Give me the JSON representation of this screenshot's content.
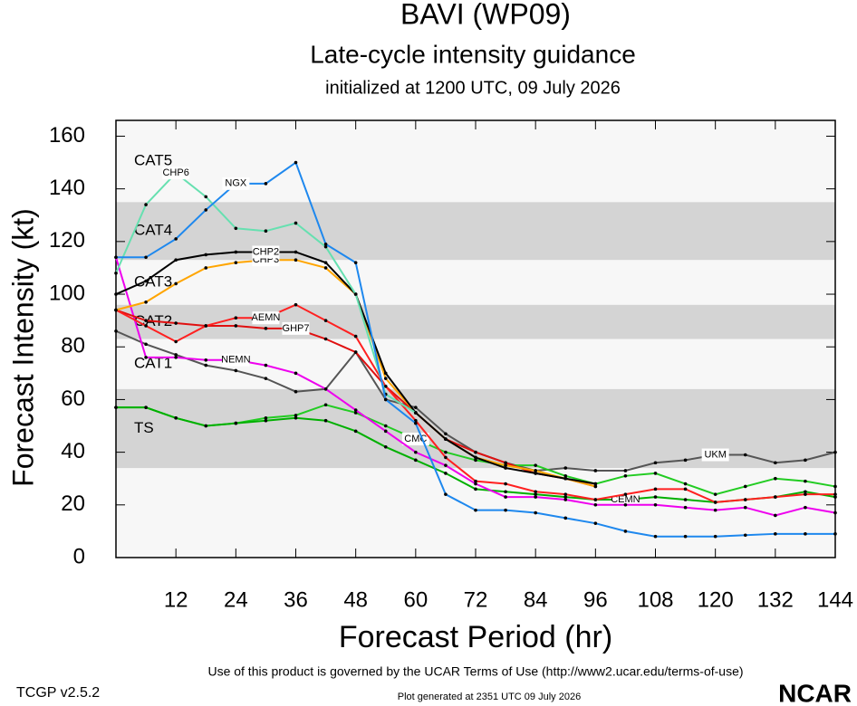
{
  "chart_data": {
    "type": "line",
    "title": "BAVI (WP09)",
    "subtitle": "Late-cycle intensity guidance",
    "initialized": "initialized at 1200 UTC, 09 July 2026",
    "x_label": "Forecast Period (hr)",
    "y_label": "Forecast Intensity (kt)",
    "footer": "Use of this product is governed by the UCAR Terms of Use (http://www2.ucar.edu/terms-of-use)",
    "version": "TCGP v2.5.2",
    "generated": "Plot generated at 2351 UTC   09 July 2026",
    "logo": "NCAR",
    "xlim": [
      0,
      144
    ],
    "ylim": [
      0,
      166
    ],
    "xticks": [
      12,
      24,
      36,
      48,
      60,
      72,
      84,
      96,
      108,
      120,
      132,
      144
    ],
    "yticks": [
      0,
      20,
      40,
      60,
      80,
      100,
      120,
      140,
      160
    ],
    "bands": [
      {
        "label": "TS",
        "range": [
          34,
          64
        ],
        "color": "#d4d4d4"
      },
      {
        "label": "CAT1",
        "range": [
          64,
          83
        ],
        "color": "#f7f7f7"
      },
      {
        "label": "CAT2",
        "range": [
          83,
          96
        ],
        "color": "#d4d4d4"
      },
      {
        "label": "CAT3",
        "range": [
          96,
          113
        ],
        "color": "#f7f7f7"
      },
      {
        "label": "CAT4",
        "range": [
          113,
          135
        ],
        "color": "#d4d4d4"
      },
      {
        "label": "CAT5",
        "range": [
          135,
          166
        ],
        "color": "#f7f7f7"
      }
    ],
    "x": [
      0,
      6,
      12,
      18,
      24,
      30,
      36,
      42,
      48,
      54,
      60,
      66,
      72,
      78,
      84,
      90,
      96,
      102,
      108,
      114,
      120,
      126,
      132,
      138,
      144
    ],
    "series": [
      {
        "name": "UKM",
        "color": "#555555",
        "values": [
          86,
          81,
          77,
          73,
          71,
          68,
          63,
          64,
          78,
          60,
          57,
          47,
          40,
          36,
          33,
          34,
          33,
          33,
          36,
          37,
          39,
          39,
          36,
          37,
          40
        ]
      },
      {
        "name": "CMC",
        "color": "#22cc22",
        "values": [
          57,
          57,
          53,
          50,
          51,
          53,
          54,
          58,
          55,
          50,
          45,
          40,
          37,
          35,
          35,
          31,
          28,
          31,
          32,
          28,
          24,
          27,
          30,
          29,
          27
        ]
      },
      {
        "name": "CEMN",
        "color": "#00b000",
        "values": [
          57,
          57,
          53,
          50,
          51,
          52,
          53,
          52,
          48,
          42,
          37,
          32,
          26,
          25,
          24,
          23,
          22,
          22,
          23,
          22,
          21,
          22,
          23,
          25,
          23
        ]
      },
      {
        "name": "NEMN",
        "color": "#ee00ee",
        "values": [
          114,
          76,
          76,
          75,
          75,
          73,
          70,
          64,
          56,
          48,
          40,
          35,
          28,
          23,
          23,
          22,
          20,
          20,
          20,
          19,
          18,
          19,
          16,
          19,
          17
        ]
      },
      {
        "name": "GHP7",
        "color": "#e01010",
        "values": [
          94,
          90,
          89,
          88,
          88,
          87,
          87,
          83,
          78,
          65,
          55,
          45,
          40,
          36,
          32,
          30,
          27,
          null,
          null,
          null,
          null,
          null,
          null,
          null,
          null
        ]
      },
      {
        "name": "AEMN",
        "color": "#ff2020",
        "values": [
          94,
          88,
          82,
          88,
          91,
          91,
          96,
          90,
          84,
          65,
          52,
          38,
          29,
          28,
          25,
          24,
          22,
          24,
          26,
          26,
          21,
          22,
          23,
          24,
          24
        ]
      },
      {
        "name": "CHP3",
        "color": "#ffa500",
        "values": [
          94,
          97,
          104,
          110,
          112,
          113,
          113,
          110,
          100,
          68,
          55,
          45,
          38,
          35,
          33,
          30,
          27,
          null,
          null,
          null,
          null,
          null,
          null,
          null,
          null
        ]
      },
      {
        "name": "CHP2",
        "color": "#000000",
        "values": [
          100,
          105,
          113,
          115,
          116,
          116,
          116,
          112,
          100,
          70,
          55,
          45,
          38,
          34,
          32,
          30,
          28,
          null,
          null,
          null,
          null,
          null,
          null,
          null,
          null
        ]
      },
      {
        "name": "CHP6",
        "color": "#66e0b0",
        "values": [
          108,
          134,
          146,
          137,
          125,
          124,
          127,
          118,
          100,
          62,
          55,
          null,
          null,
          null,
          null,
          null,
          null,
          null,
          null,
          null,
          null,
          null,
          null,
          null,
          null
        ]
      },
      {
        "name": "NGX",
        "color": "#1e88ee",
        "values": [
          114,
          114,
          121,
          132,
          142,
          142,
          150,
          119,
          112,
          60,
          51,
          24,
          18,
          18,
          17,
          15,
          13,
          10,
          8,
          8,
          8,
          8.5,
          9,
          9,
          9
        ]
      }
    ]
  }
}
